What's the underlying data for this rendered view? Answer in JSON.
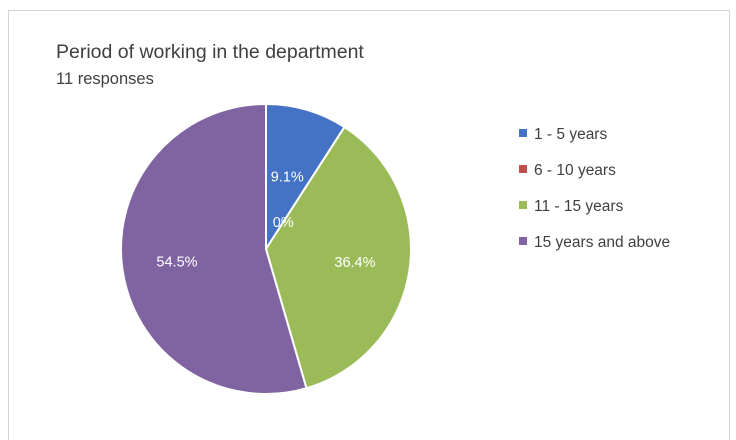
{
  "chart_data": {
    "type": "pie",
    "title": "Period of working in the department",
    "subtitle": "11 responses",
    "categories": [
      "1 - 5 years",
      "6 - 10 years",
      "11 - 15 years",
      "15 years and above"
    ],
    "values": [
      9.1,
      0,
      36.4,
      54.5
    ],
    "labels": [
      "9.1%",
      "0%",
      "36.4%",
      "54.5%"
    ],
    "colors": [
      "#4472c4",
      "#c0504d",
      "#9bbb59",
      "#8064a2"
    ],
    "legend": "right",
    "start_angle": "12 o'clock, clockwise"
  }
}
